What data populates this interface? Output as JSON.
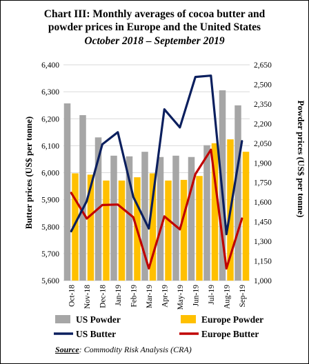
{
  "title_line1": "Chart III: Monthly averages of cocoa butter and",
  "title_line2": "powder prices in Europe and the United States",
  "title_line3": "October 2018 – September 2019",
  "source_label": "Source",
  "source_text": ": Commodity Risk Analysis (CRA)",
  "chart_data": {
    "type": "bar",
    "categories": [
      "Oct-18",
      "Nov-18",
      "Dec-18",
      "Jan-19",
      "Feb-19",
      "Mar-19",
      "Apr-19",
      "May-19",
      "Jun-19",
      "Jul-19",
      "Aug-19",
      "Sep-19"
    ],
    "ylabel_left": "Butter prices (US$ per tonne)",
    "ylabel_right": "Powder prices (US$ per tonne)",
    "ylim_left": [
      5600,
      6400
    ],
    "ylim_right": [
      1000,
      2650
    ],
    "yticks_left": [
      "5,600",
      "5,700",
      "5,800",
      "5,900",
      "6,000",
      "6,100",
      "6,200",
      "6,300",
      "6,400"
    ],
    "yticks_right": [
      "1,000",
      "1,150",
      "1,300",
      "1,450",
      "1,600",
      "1,750",
      "1,900",
      "2,050",
      "2,200",
      "2,350",
      "2,500",
      "2,650"
    ],
    "grid": true,
    "legend_position": "bottom",
    "series": [
      {
        "name": "US Powder",
        "kind": "bar",
        "axis": "right",
        "color": "#A6A6A6",
        "values": [
          2355,
          2265,
          2095,
          1955,
          1950,
          1985,
          1945,
          1955,
          1945,
          2035,
          2455,
          2340
        ]
      },
      {
        "name": "Europe Powder",
        "kind": "bar",
        "axis": "right",
        "color": "#FFC000",
        "values": [
          1820,
          1810,
          1765,
          1765,
          1790,
          1820,
          1765,
          1770,
          1800,
          2050,
          2080,
          1985
        ]
      },
      {
        "name": "US Butter",
        "kind": "line",
        "axis": "left",
        "color": "#0B1F5E",
        "values": [
          5783,
          5895,
          6105,
          6150,
          5910,
          5793,
          6235,
          6168,
          6355,
          6360,
          5772,
          6117
        ]
      },
      {
        "name": "Europe Butter",
        "kind": "line",
        "axis": "left",
        "color": "#C00000",
        "values": [
          5925,
          5830,
          5880,
          5882,
          5835,
          5645,
          5838,
          5790,
          5995,
          6085,
          5645,
          5830
        ]
      }
    ]
  }
}
